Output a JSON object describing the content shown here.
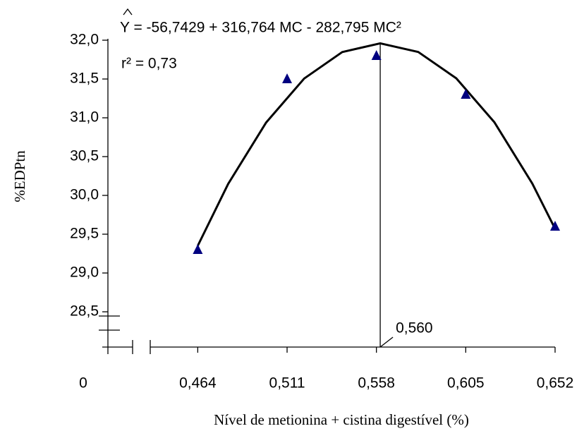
{
  "chart_data": {
    "type": "scatter",
    "x_label": "Nível de metionina + cistina digestível (%)",
    "y_label": "%EDPtn",
    "equation": "Y = -56,7429 + 316,764 MC - 282,795 MC²",
    "r_squared": "r² = 0,73",
    "origin_label": "0",
    "series": [
      {
        "color": "#000080",
        "x": [
          0.464,
          0.511,
          0.558,
          0.605,
          0.652
        ],
        "values": [
          29.3,
          31.5,
          31.8,
          31.3,
          29.6
        ]
      }
    ],
    "fit": {
      "color": "#000000",
      "x": [
        0.464,
        0.48,
        0.5,
        0.52,
        0.54,
        0.56,
        0.58,
        0.6,
        0.62,
        0.64,
        0.652
      ],
      "values": [
        29.351,
        30.148,
        30.94,
        31.506,
        31.847,
        31.96,
        31.848,
        31.509,
        30.945,
        30.153,
        29.57
      ]
    },
    "optimum": {
      "value": 0.56,
      "label": "0,560"
    },
    "xlim": [
      0.439,
      0.652
    ],
    "ylim": [
      28.05,
      32.0
    ],
    "xticks": [
      {
        "value": 0.464,
        "label": "0,464"
      },
      {
        "value": 0.511,
        "label": "0,511"
      },
      {
        "value": 0.558,
        "label": "0,558"
      },
      {
        "value": 0.605,
        "label": "0,605"
      },
      {
        "value": 0.652,
        "label": "0,652"
      }
    ],
    "yticks": [
      {
        "value": 28.5,
        "label": "28,5"
      },
      {
        "value": 29,
        "label": "29,0"
      },
      {
        "value": 29.5,
        "label": "29,5"
      },
      {
        "value": 30,
        "label": "30,0"
      },
      {
        "value": 30.5,
        "label": "30,5"
      },
      {
        "value": 31,
        "label": "31,0"
      },
      {
        "value": 31.5,
        "label": "31,5"
      },
      {
        "value": 32,
        "label": "32,0"
      }
    ]
  }
}
